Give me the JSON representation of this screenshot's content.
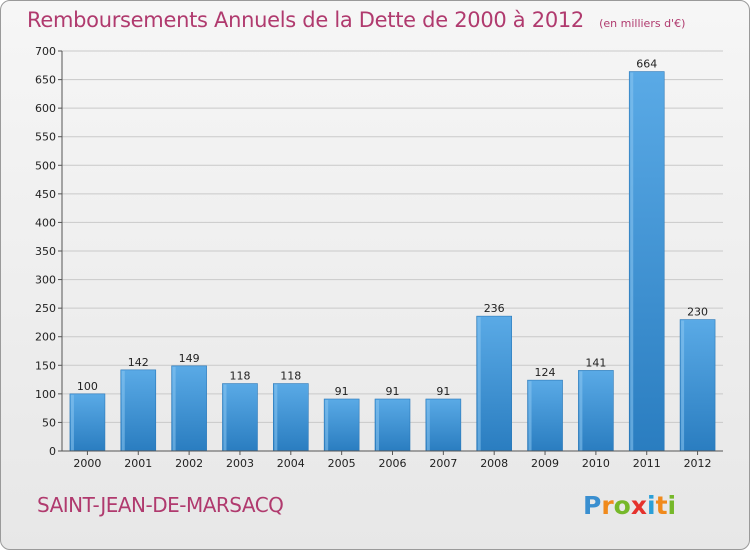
{
  "header": {
    "title": "Remboursements Annuels de la Dette de 2000 à 2012",
    "subtitle": "(en milliers d'€)"
  },
  "footer": {
    "commune": "SAINT-JEAN-DE-MARSACQ",
    "logo_letters": [
      "P",
      "r",
      "o",
      "x",
      "i",
      "t",
      "i"
    ],
    "logo_colors": [
      "#3a8fd0",
      "#f08a1c",
      "#76b82a",
      "#e5322d",
      "#2a9fd8",
      "#f08a1c",
      "#76b82a"
    ]
  },
  "colors": {
    "bar_light": "#5aaae6",
    "bar_dark": "#2a7dc0",
    "accent": "#b03a6e",
    "grid": "#c9c9c9"
  },
  "chart_data": {
    "type": "bar",
    "title": "Remboursements Annuels de la Dette de 2000 à 2012",
    "subtitle": "(en milliers d'€)",
    "categories": [
      "2000",
      "2001",
      "2002",
      "2003",
      "2004",
      "2005",
      "2006",
      "2007",
      "2008",
      "2009",
      "2010",
      "2011",
      "2012"
    ],
    "values": [
      100,
      142,
      149,
      118,
      118,
      91,
      91,
      91,
      236,
      124,
      141,
      664,
      230
    ],
    "ylim": [
      0,
      700
    ],
    "yticks": [
      0,
      50,
      100,
      150,
      200,
      250,
      300,
      350,
      400,
      450,
      500,
      550,
      600,
      650,
      700
    ],
    "grid": true,
    "xlabel": "",
    "ylabel": ""
  }
}
